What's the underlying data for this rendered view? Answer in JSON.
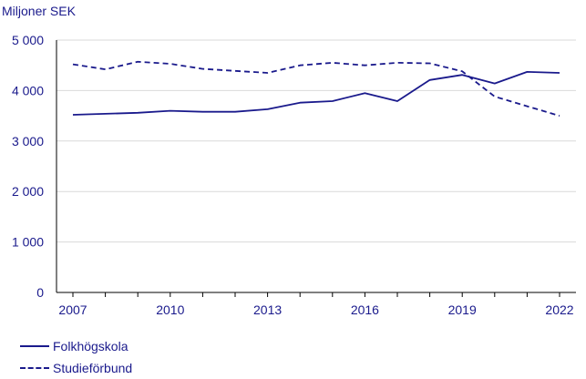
{
  "chart_data": {
    "type": "line",
    "title": "",
    "ylabel": "Miljoner SEK",
    "xlabel": "",
    "x": [
      2007,
      2008,
      2009,
      2010,
      2011,
      2012,
      2013,
      2014,
      2015,
      2016,
      2017,
      2018,
      2019,
      2020,
      2021,
      2022
    ],
    "xticks": [
      "2007",
      "2010",
      "2013",
      "2016",
      "2019",
      "2022"
    ],
    "ylim": [
      0,
      5000
    ],
    "yticks": [
      {
        "value": 0,
        "label": "0"
      },
      {
        "value": 1000,
        "label": "1 000"
      },
      {
        "value": 2000,
        "label": "2 000"
      },
      {
        "value": 3000,
        "label": "3 000"
      },
      {
        "value": 4000,
        "label": "4 000"
      },
      {
        "value": 5000,
        "label": "5 000"
      }
    ],
    "grid": true,
    "legend": "bottom-left",
    "series": [
      {
        "name": "Folkhögskola",
        "color": "#1a1a8c",
        "dash": "solid",
        "values": [
          3520,
          3540,
          3560,
          3600,
          3580,
          3580,
          3630,
          3760,
          3790,
          3950,
          3790,
          4210,
          4310,
          4140,
          4370,
          4350
        ]
      },
      {
        "name": "Studieförbund",
        "color": "#1a1a8c",
        "dash": "dashed",
        "values": [
          4520,
          4420,
          4570,
          4530,
          4430,
          4390,
          4350,
          4500,
          4550,
          4500,
          4550,
          4540,
          4380,
          3880,
          3690,
          3500
        ]
      }
    ]
  }
}
